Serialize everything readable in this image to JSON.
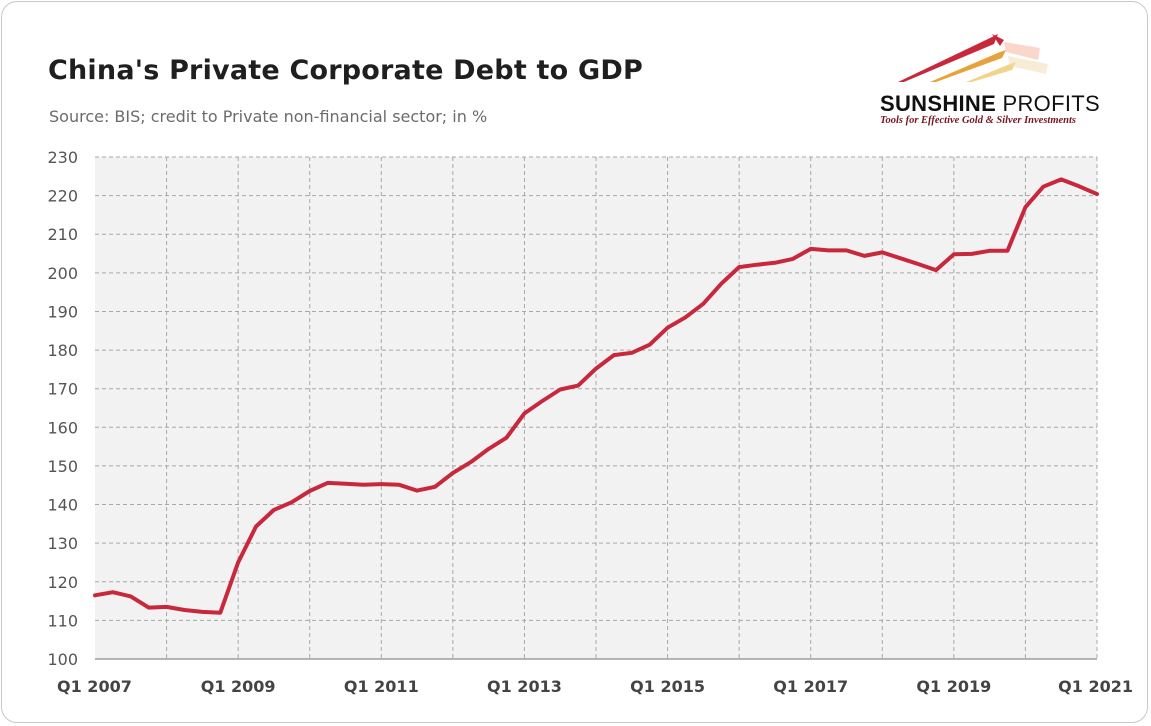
{
  "chart_data": {
    "type": "line",
    "title": "China's Private Corporate Debt to GDP",
    "subtitle": "Source: BIS; credit to Private non-financial sector; in %",
    "ylim": [
      100,
      230
    ],
    "yticks": [
      100,
      110,
      120,
      130,
      140,
      150,
      160,
      170,
      180,
      190,
      200,
      210,
      220,
      230
    ],
    "xticks": [
      "Q1 2007",
      "Q1 2009",
      "Q1 2011",
      "Q1 2013",
      "Q1 2015",
      "Q1 2017",
      "Q1 2019",
      "Q1 2021"
    ],
    "grid": true,
    "color": "#c8283c",
    "x": [
      "Q1 2007",
      "Q2 2007",
      "Q3 2007",
      "Q4 2007",
      "Q1 2008",
      "Q2 2008",
      "Q3 2008",
      "Q4 2008",
      "Q1 2009",
      "Q2 2009",
      "Q3 2009",
      "Q4 2009",
      "Q1 2010",
      "Q2 2010",
      "Q3 2010",
      "Q4 2010",
      "Q1 2011",
      "Q2 2011",
      "Q3 2011",
      "Q4 2011",
      "Q1 2012",
      "Q2 2012",
      "Q3 2012",
      "Q4 2012",
      "Q1 2013",
      "Q2 2013",
      "Q3 2013",
      "Q4 2013",
      "Q1 2014",
      "Q2 2014",
      "Q3 2014",
      "Q4 2014",
      "Q1 2015",
      "Q2 2015",
      "Q3 2015",
      "Q4 2015",
      "Q1 2016",
      "Q2 2016",
      "Q3 2016",
      "Q4 2016",
      "Q1 2017",
      "Q2 2017",
      "Q3 2017",
      "Q4 2017",
      "Q1 2018",
      "Q2 2018",
      "Q3 2018",
      "Q4 2018",
      "Q1 2019",
      "Q2 2019",
      "Q3 2019",
      "Q4 2019",
      "Q1 2020",
      "Q2 2020",
      "Q3 2020",
      "Q4 2020",
      "Q1 2021"
    ],
    "series": [
      {
        "values": [
          116.5,
          117.3,
          116.2,
          113.3,
          113.5,
          112.7,
          112.2,
          112.0,
          125.0,
          134.3,
          138.6,
          140.6,
          143.5,
          145.6,
          145.4,
          145.1,
          145.3,
          145.1,
          143.6,
          144.6,
          148.2,
          151.0,
          154.4,
          157.3,
          163.6,
          166.8,
          169.8,
          170.8,
          175.2,
          178.7,
          179.3,
          181.4,
          185.8,
          188.5,
          192.0,
          197.2,
          201.5,
          202.1,
          202.6,
          203.6,
          206.2,
          205.8,
          205.8,
          204.4,
          205.3,
          203.8,
          202.3,
          200.7,
          204.8,
          204.9,
          205.7,
          205.7,
          217.0,
          222.3,
          224.2,
          222.4,
          220.4
        ]
      }
    ]
  },
  "logo": {
    "name_bold": "SUNSHINE",
    "name_thin": " PROFITS",
    "tagline": "Tools for Effective Gold & Silver Investments"
  }
}
